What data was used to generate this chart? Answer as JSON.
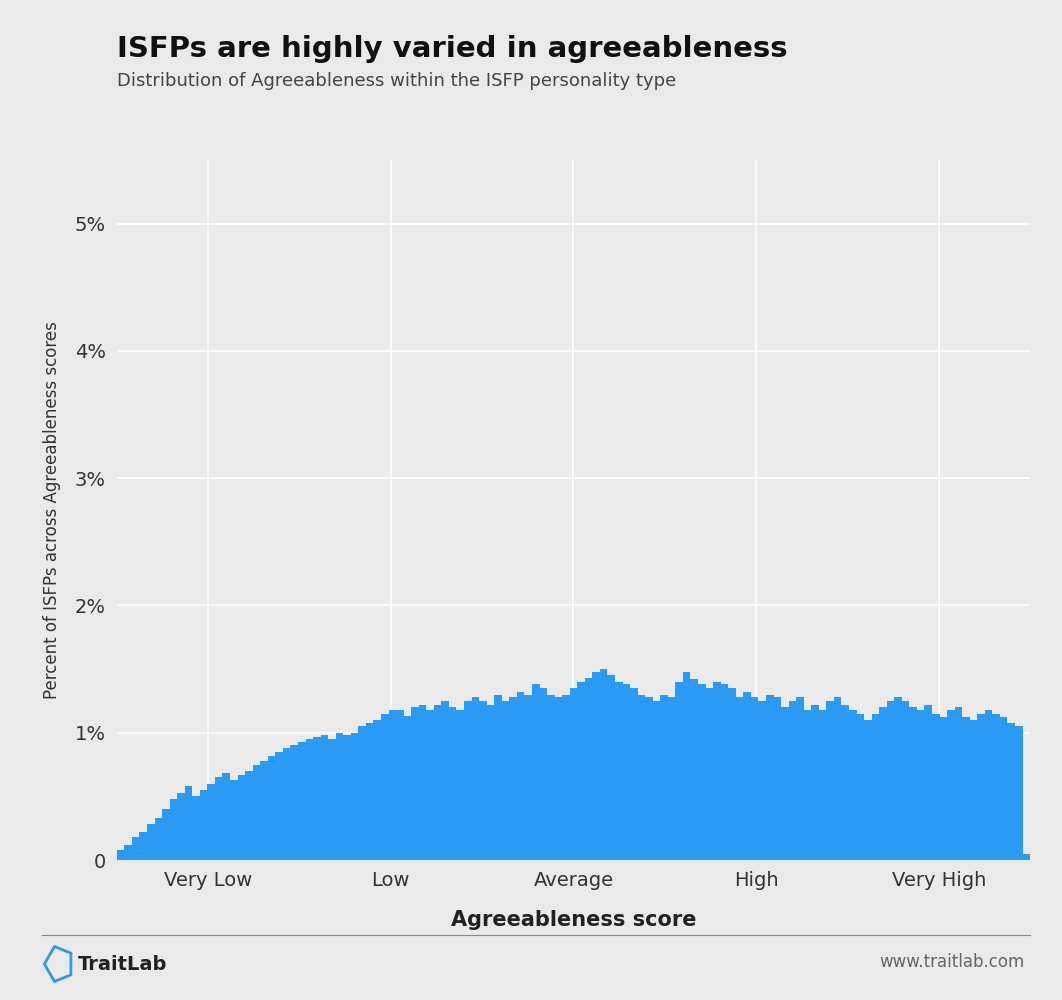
{
  "title": "ISFPs are highly varied in agreeableness",
  "subtitle": "Distribution of Agreeableness within the ISFP personality type",
  "xlabel": "Agreeableness score",
  "ylabel": "Percent of ISFPs across Agreeableness scores",
  "bar_color": "#2B9AF3",
  "background_color": "#EAEAEA",
  "plot_background_color": "#EAEAEA",
  "ylim": [
    0,
    0.055
  ],
  "yticks": [
    0,
    0.01,
    0.02,
    0.03,
    0.04,
    0.05
  ],
  "ytick_labels": [
    "0",
    "1%",
    "2%",
    "3%",
    "4%",
    "5%"
  ],
  "xtick_labels": [
    "Very Low",
    "Low",
    "Average",
    "High",
    "Very High"
  ],
  "brand": "TraitLab",
  "website": "www.traitlab.com",
  "bar_values": [
    0.0008,
    0.0012,
    0.0018,
    0.0022,
    0.0028,
    0.0033,
    0.004,
    0.0048,
    0.0053,
    0.0058,
    0.005,
    0.0055,
    0.006,
    0.0065,
    0.0068,
    0.0063,
    0.0067,
    0.007,
    0.0075,
    0.0078,
    0.0082,
    0.0085,
    0.0088,
    0.009,
    0.0093,
    0.0095,
    0.0097,
    0.0098,
    0.0095,
    0.01,
    0.0098,
    0.01,
    0.0105,
    0.0108,
    0.011,
    0.0115,
    0.0118,
    0.0118,
    0.0113,
    0.012,
    0.0122,
    0.0118,
    0.0122,
    0.0125,
    0.012,
    0.0118,
    0.0125,
    0.0128,
    0.0125,
    0.0122,
    0.013,
    0.0125,
    0.0128,
    0.0132,
    0.013,
    0.0138,
    0.0135,
    0.013,
    0.0128,
    0.013,
    0.0135,
    0.014,
    0.0143,
    0.0148,
    0.015,
    0.0145,
    0.014,
    0.0138,
    0.0135,
    0.013,
    0.0128,
    0.0125,
    0.013,
    0.0128,
    0.014,
    0.0148,
    0.0142,
    0.0138,
    0.0135,
    0.014,
    0.0138,
    0.0135,
    0.0128,
    0.0132,
    0.0128,
    0.0125,
    0.013,
    0.0128,
    0.012,
    0.0125,
    0.0128,
    0.0118,
    0.0122,
    0.0118,
    0.0125,
    0.0128,
    0.0122,
    0.0118,
    0.0115,
    0.011,
    0.0115,
    0.012,
    0.0125,
    0.0128,
    0.0125,
    0.012,
    0.0118,
    0.0122,
    0.0115,
    0.0112,
    0.0118,
    0.012,
    0.0112,
    0.011,
    0.0115,
    0.0118,
    0.0115,
    0.0112,
    0.0108,
    0.0105,
    0.0005
  ]
}
